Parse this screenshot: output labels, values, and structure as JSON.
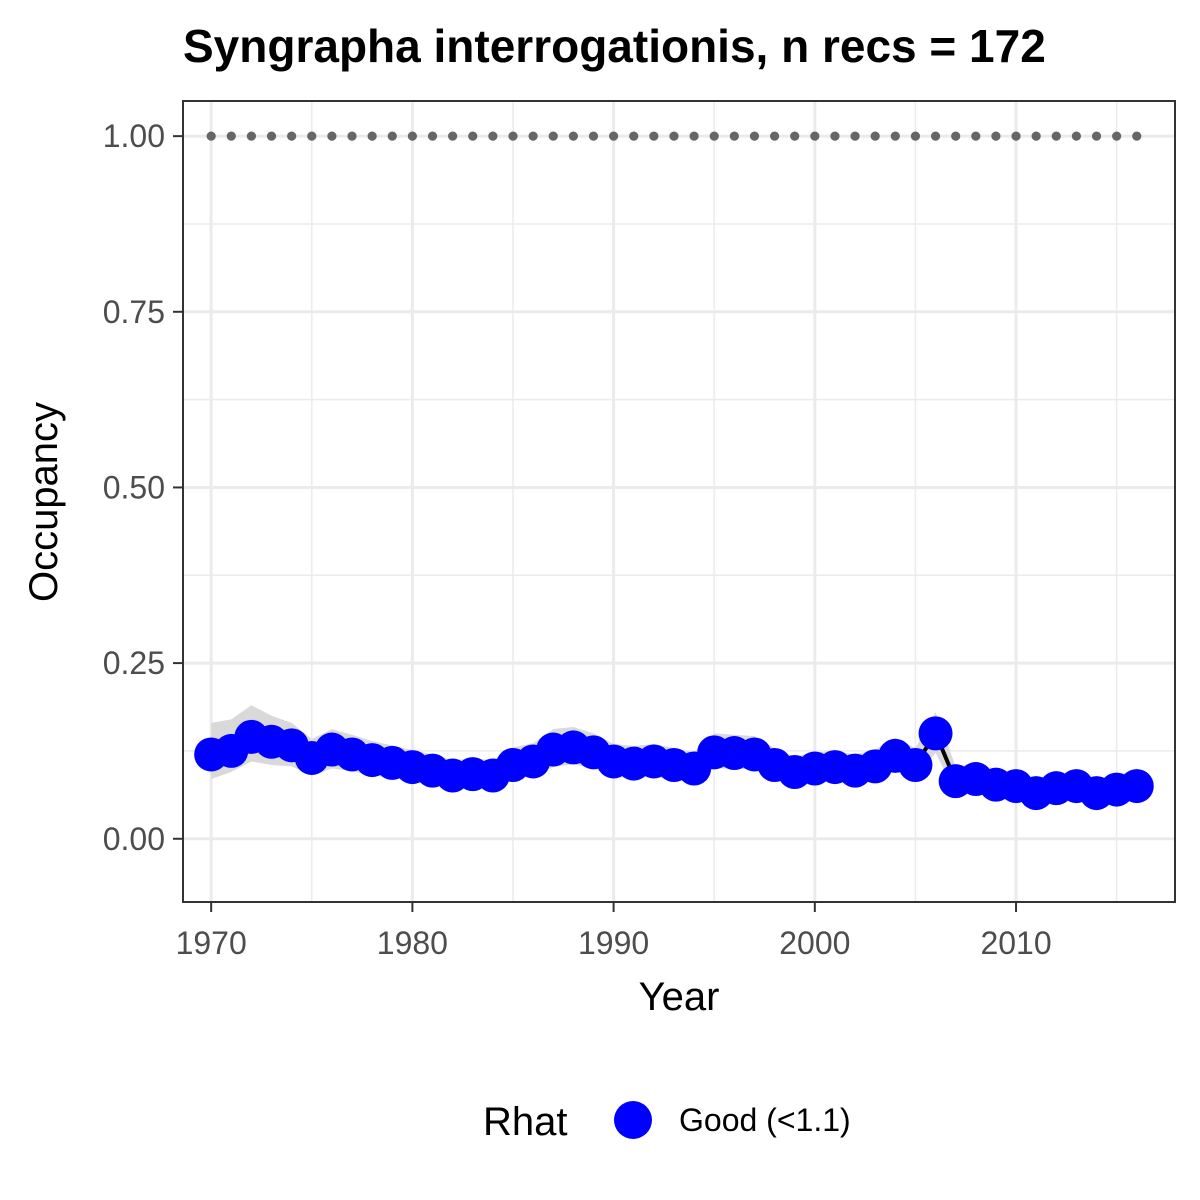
{
  "chart_data": {
    "type": "line",
    "title": "Syngrapha interrogationis, n recs = 172",
    "xlabel": "Year",
    "ylabel": "Occupancy",
    "xlim": [
      1968.6,
      2017.9
    ],
    "ylim": [
      -0.09,
      1.05
    ],
    "x_ticks": [
      1970,
      1980,
      1990,
      2000,
      2010
    ],
    "x_tick_labels": [
      "1970",
      "1980",
      "1990",
      "2000",
      "2010"
    ],
    "y_ticks": [
      0,
      0.25,
      0.5,
      0.75,
      1.0
    ],
    "y_tick_labels": [
      "0.00",
      "0.25",
      "0.50",
      "0.75",
      "1.00"
    ],
    "grid": true,
    "x": [
      1970,
      1971,
      1972,
      1973,
      1974,
      1975,
      1976,
      1977,
      1978,
      1979,
      1980,
      1981,
      1982,
      1983,
      1984,
      1985,
      1986,
      1987,
      1988,
      1989,
      1990,
      1991,
      1992,
      1993,
      1994,
      1995,
      1996,
      1997,
      1998,
      1999,
      2000,
      2001,
      2002,
      2003,
      2004,
      2005,
      2006,
      2007,
      2008,
      2009,
      2010,
      2011,
      2012,
      2013,
      2014,
      2015,
      2016
    ],
    "series": [
      {
        "values": [
          0.12,
          0.125,
          0.145,
          0.138,
          0.133,
          0.115,
          0.127,
          0.12,
          0.112,
          0.108,
          0.102,
          0.097,
          0.09,
          0.092,
          0.09,
          0.105,
          0.11,
          0.127,
          0.13,
          0.123,
          0.11,
          0.107,
          0.11,
          0.105,
          0.1,
          0.123,
          0.122,
          0.12,
          0.105,
          0.095,
          0.1,
          0.102,
          0.097,
          0.103,
          0.118,
          0.105,
          0.15,
          0.082,
          0.085,
          0.077,
          0.075,
          0.065,
          0.072,
          0.075,
          0.065,
          0.07,
          0.075
        ],
        "lower": [
          0.085,
          0.095,
          0.11,
          0.105,
          0.103,
          0.09,
          0.1,
          0.096,
          0.09,
          0.087,
          0.082,
          0.078,
          0.072,
          0.074,
          0.073,
          0.085,
          0.09,
          0.102,
          0.106,
          0.1,
          0.088,
          0.086,
          0.088,
          0.084,
          0.08,
          0.1,
          0.1,
          0.098,
          0.085,
          0.077,
          0.081,
          0.083,
          0.078,
          0.083,
          0.096,
          0.085,
          0.122,
          0.066,
          0.068,
          0.061,
          0.059,
          0.051,
          0.057,
          0.059,
          0.051,
          0.055,
          0.059
        ],
        "upper": [
          0.165,
          0.17,
          0.19,
          0.175,
          0.165,
          0.142,
          0.156,
          0.148,
          0.139,
          0.133,
          0.126,
          0.12,
          0.112,
          0.114,
          0.112,
          0.13,
          0.136,
          0.156,
          0.159,
          0.15,
          0.135,
          0.132,
          0.135,
          0.129,
          0.123,
          0.15,
          0.148,
          0.146,
          0.129,
          0.117,
          0.123,
          0.125,
          0.12,
          0.127,
          0.144,
          0.129,
          0.18,
          0.103,
          0.106,
          0.097,
          0.095,
          0.083,
          0.091,
          0.094,
          0.083,
          0.089,
          0.1
        ],
        "color": "#0000ff",
        "line_color": "#000000",
        "ribbon_color": "#d9d9d9"
      }
    ],
    "reference_line": {
      "y": 1.0,
      "style": "dotted",
      "color": "#666666"
    },
    "legend": {
      "title": "Rhat",
      "entries": [
        {
          "label": "Good (<1.1)",
          "color": "#0000ff"
        }
      ],
      "placement": "bottom"
    }
  }
}
